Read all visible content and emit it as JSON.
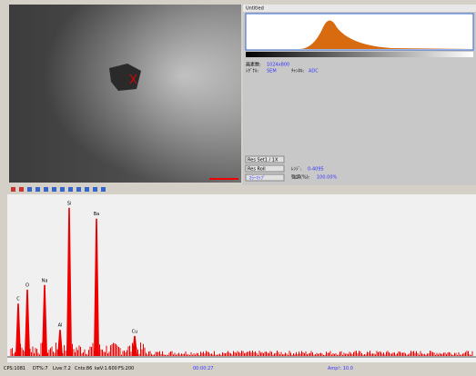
{
  "window_title": "Untitled",
  "info": {
    "pixels_label": "画素数:",
    "pixels": "1024x800",
    "signal_label": "ｼｸﾞﾅﾙ:",
    "signal": "SEM",
    "channel_label": "ﾁｬﾝﾈﾙ:",
    "channel": "ADC"
  },
  "buttons": [
    "Res Set1 / 1X",
    "Res Roll",
    "ｶﾗｰﾏｯﾌﾟ"
  ],
  "range_label": "ﾚﾝｼﾞ:",
  "range": "0-4095",
  "contrast_label": "強調(%):",
  "contrast": "100.00%",
  "spectrum": {
    "peaks": [
      {
        "label": "C",
        "height": 34
      },
      {
        "label": "O",
        "height": 43
      },
      {
        "label": "Na",
        "height": 46
      },
      {
        "label": "Al",
        "height": 17
      },
      {
        "label": "Si",
        "height": 96
      },
      {
        "label": "Ba",
        "height": 89
      },
      {
        "label": "Cu",
        "height": 13
      }
    ]
  },
  "status": [
    "CPS:1081",
    "DT%:7",
    "Live:7.2",
    "Cnts:86",
    "keV:1.600",
    "FS:200",
    "00:00:27",
    "Amp!: 10.0"
  ]
}
